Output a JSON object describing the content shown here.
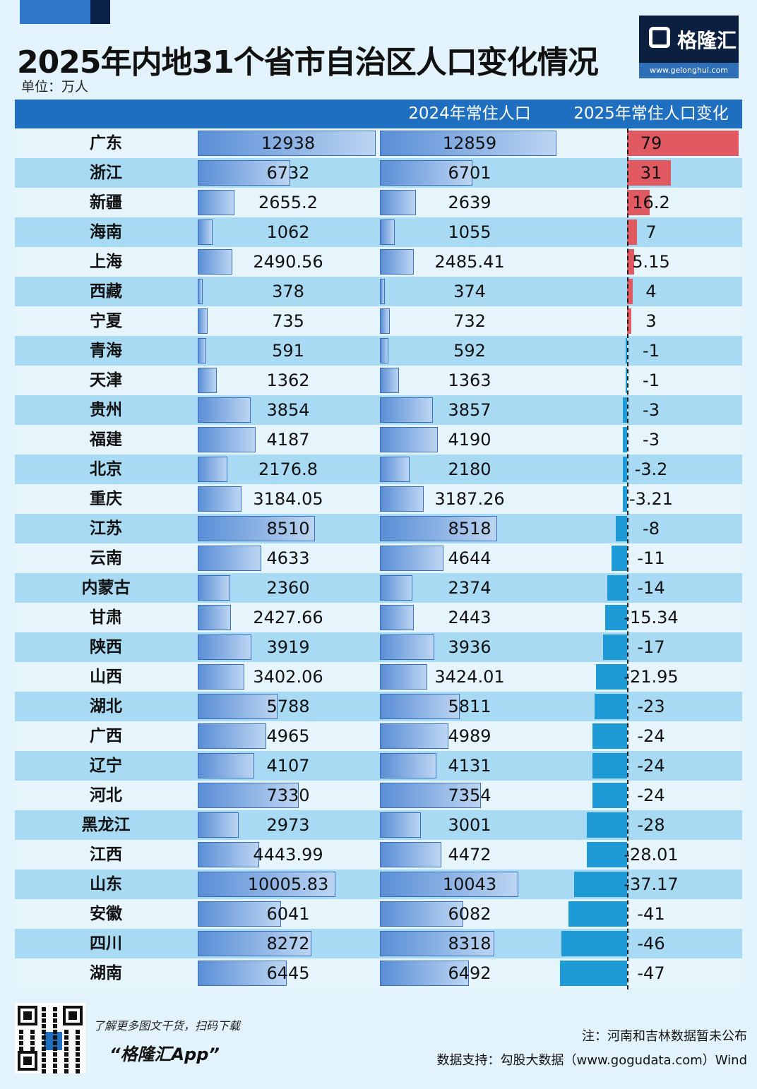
{
  "title": "2025年内地31个省市自治区人口变化情况",
  "unit": "单位：万人",
  "logo": {
    "text": "格隆汇",
    "url": "www.gelonghui.com"
  },
  "header": {
    "col_2025": "",
    "col_2024": "2024年常住人口",
    "col_change": "2025年常住人口变化"
  },
  "colors": {
    "header": "#1e6fc0",
    "positive": "#e15a62",
    "negative": "#1e9bd6",
    "bar": "#5a8ed6"
  },
  "chart_data": {
    "type": "bar",
    "title": "2025年内地31个省市自治区人口变化情况",
    "unit": "万人",
    "categories": [
      "广东",
      "浙江",
      "新疆",
      "海南",
      "上海",
      "西藏",
      "宁夏",
      "青海",
      "天津",
      "贵州",
      "福建",
      "北京",
      "重庆",
      "江苏",
      "云南",
      "内蒙古",
      "甘肃",
      "陕西",
      "山西",
      "湖北",
      "广西",
      "辽宁",
      "河北",
      "黑龙江",
      "江西",
      "山东",
      "安徽",
      "四川",
      "湖南"
    ],
    "series": [
      {
        "values": [
          12938,
          6732,
          2655.2,
          1062,
          2490.56,
          378,
          735,
          591,
          1362,
          3854,
          4187,
          2176.8,
          3184.05,
          8510,
          4633,
          2360,
          2427.66,
          3919,
          3402.06,
          5788,
          4965,
          4107,
          7330,
          2973,
          4443.99,
          10005.83,
          6041,
          8272,
          6445
        ],
        "labels": [
          "12938",
          "6732",
          "2655.2",
          "1062",
          "2490.56",
          "378",
          "735",
          "591",
          "1362",
          "3854",
          "4187",
          "2176.8",
          "3184.05",
          "8510",
          "4633",
          "2360",
          "2427.66",
          "3919",
          "3402.06",
          "5788",
          "4965",
          "4107",
          "7330",
          "2973",
          "4443.99",
          "10005.83",
          "6041",
          "8272",
          "6445"
        ]
      },
      {
        "name": "2024年常住人口",
        "values": [
          12859,
          6701,
          2639,
          1055,
          2485.41,
          374,
          732,
          592,
          1363,
          3857,
          4190,
          2180,
          3187.26,
          8518,
          4644,
          2374,
          2443,
          3936,
          3424.01,
          5811,
          4989,
          4131,
          7354,
          3001,
          4472,
          10043,
          6082,
          8318,
          6492
        ],
        "labels": [
          "12859",
          "6701",
          "2639",
          "1055",
          "2485.41",
          "374",
          "732",
          "592",
          "1363",
          "3857",
          "4190",
          "2180",
          "3187.26",
          "8518",
          "4644",
          "2374",
          "2443",
          "3936",
          "3424.01",
          "5811",
          "4989",
          "4131",
          "7354",
          "3001",
          "4472",
          "10043",
          "6082",
          "8318",
          "6492"
        ]
      },
      {
        "name": "2025年常住人口变化",
        "values": [
          79,
          31,
          16.2,
          7,
          5.15,
          4,
          3,
          -1,
          -1,
          -3,
          -3,
          -3.2,
          -3.21,
          -8,
          -11,
          -14,
          -15.34,
          -17,
          -21.95,
          -23,
          -24,
          -24,
          -24,
          -28,
          -28.01,
          -37.17,
          -41,
          -46,
          -47
        ],
        "labels": [
          "79",
          "31",
          "16.2",
          "7",
          "5.15",
          "4",
          "3",
          "-1",
          "-1",
          "-3",
          "-3",
          "-3.2",
          "-3.21",
          "-8",
          "-11",
          "-14",
          "-15.34",
          "-17",
          "-21.95",
          "-23",
          "-24",
          "-24",
          "-24",
          "-28",
          "-28.01",
          "-37.17",
          "-41",
          "-46",
          "-47"
        ]
      }
    ]
  },
  "footer": {
    "promo": "了解更多图文干货，扫码下载",
    "app": "“格隆汇App”",
    "note": "注：河南和吉林数据暂未公布",
    "source": "数据支持：勾股大数据（www.gogudata.com）Wind"
  }
}
